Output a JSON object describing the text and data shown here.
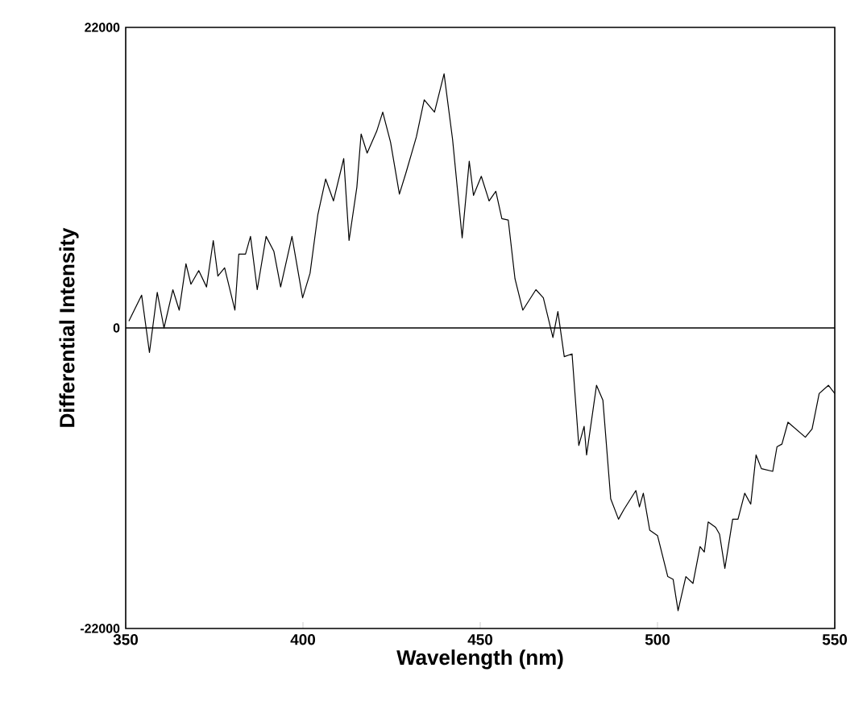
{
  "chart_data": {
    "type": "line",
    "xlabel": "Wavelength (nm)",
    "ylabel": "Differential Intensity",
    "color": "#000000",
    "x": [
      350.9,
      354.5,
      356.7,
      358.9,
      360.8,
      363.3,
      365.1,
      367,
      368.4,
      370.6,
      372.8,
      374.7,
      376,
      377.9,
      380.8,
      381.9,
      383.8,
      385.2,
      387.1,
      389.6,
      391.8,
      393.7,
      396.9,
      399.9,
      402,
      404.2,
      406.4,
      408.6,
      411.5,
      413,
      415.2,
      416.4,
      418.1,
      420.8,
      422.5,
      424.7,
      427.2,
      429.1,
      432,
      434.2,
      437.1,
      439.8,
      442.2,
      444.9,
      446.9,
      448.1,
      450.3,
      452.5,
      454.4,
      456.1,
      457.9,
      459.8,
      462,
      465.7,
      467.8,
      470.5,
      471.9,
      473.7,
      475.9,
      477.8,
      479.3,
      480,
      482.8,
      484.6,
      486.8,
      489,
      490.5,
      493.9,
      494.9,
      496,
      497.8,
      500,
      502.9,
      504.4,
      505.8,
      508,
      510,
      512,
      513.2,
      514.3,
      516.4,
      517.5,
      519,
      521.2,
      522.7,
      524.6,
      526.3,
      527.8,
      529.3,
      532.5,
      533.7,
      535.1,
      536.8,
      541.7,
      543.6,
      545.6,
      548.2,
      550
    ],
    "values": [
      500,
      2400,
      -1800,
      2600,
      0,
      2800,
      1300,
      4700,
      3200,
      4200,
      3000,
      6400,
      3800,
      4400,
      1300,
      5400,
      5400,
      6700,
      2800,
      6700,
      5600,
      3000,
      6700,
      2200,
      4000,
      8300,
      10900,
      9300,
      12400,
      6400,
      10300,
      14200,
      12800,
      14400,
      15800,
      13600,
      9800,
      11400,
      14000,
      16700,
      15800,
      18600,
      13800,
      6600,
      12200,
      9700,
      11100,
      9300,
      10000,
      8000,
      7900,
      3600,
      1300,
      2800,
      2200,
      -700,
      1200,
      -2100,
      -1900,
      -8600,
      -7200,
      -9300,
      -4200,
      -5300,
      -12500,
      -14000,
      -13300,
      -11900,
      -13100,
      -12100,
      -14800,
      -15200,
      -18200,
      -18400,
      -20700,
      -18200,
      -18700,
      -16000,
      -16400,
      -14200,
      -14600,
      -15100,
      -17600,
      -14000,
      -14000,
      -12100,
      -12900,
      -9300,
      -10300,
      -10500,
      -8700,
      -8500,
      -6900,
      -8000,
      -7400,
      -4800,
      -4200,
      -4800
    ],
    "xlim": [
      350,
      550
    ],
    "ylim": [
      -22000,
      22000
    ],
    "xticks": [
      350,
      400,
      450,
      500,
      550
    ],
    "yticks": [
      -22000,
      0,
      22000
    ],
    "ref_lines": [
      {
        "axis": "y",
        "value": 0,
        "color": "#000000"
      }
    ],
    "grid": false,
    "marker": "none",
    "line_style": "solid"
  }
}
